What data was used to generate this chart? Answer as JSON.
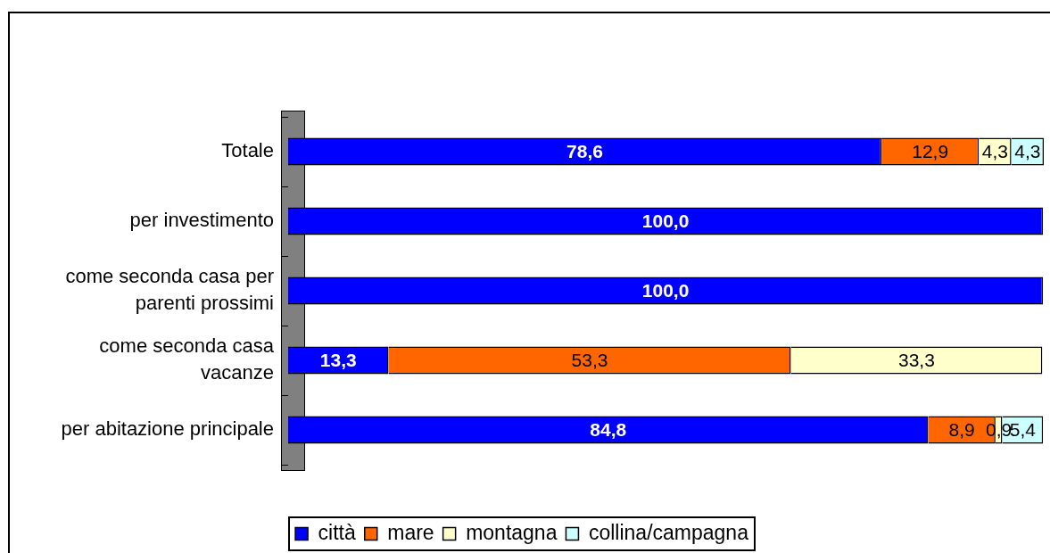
{
  "chart_data": {
    "type": "bar",
    "orientation": "horizontal",
    "stacked": true,
    "categories": [
      "Totale",
      "per investimento",
      "come seconda casa per parenti prossimi",
      "come seconda casa vacanze",
      "per abitazione principale"
    ],
    "series": [
      {
        "name": "città",
        "color": "#0000ff",
        "values": [
          78.6,
          100.0,
          100.0,
          13.3,
          84.8
        ],
        "value_labels": [
          "78,6",
          "100,0",
          "100,0",
          "13,3",
          "84,8"
        ]
      },
      {
        "name": "mare",
        "color": "#ff6600",
        "values": [
          12.9,
          0,
          0,
          53.3,
          8.9
        ],
        "value_labels": [
          "12,9",
          null,
          null,
          "53,3",
          "8,9"
        ]
      },
      {
        "name": "montagna",
        "color": "#ffffcc",
        "values": [
          4.3,
          0,
          0,
          33.3,
          0.9
        ],
        "value_labels": [
          "4,3",
          null,
          null,
          "33,3",
          "0,9"
        ]
      },
      {
        "name": "collina/campagna",
        "color": "#ccffff",
        "values": [
          4.3,
          0,
          0,
          0,
          5.4
        ],
        "value_labels": [
          "4,3",
          null,
          null,
          null,
          "5,4"
        ]
      }
    ],
    "legend": "bottom",
    "tick_labels": "y"
  }
}
